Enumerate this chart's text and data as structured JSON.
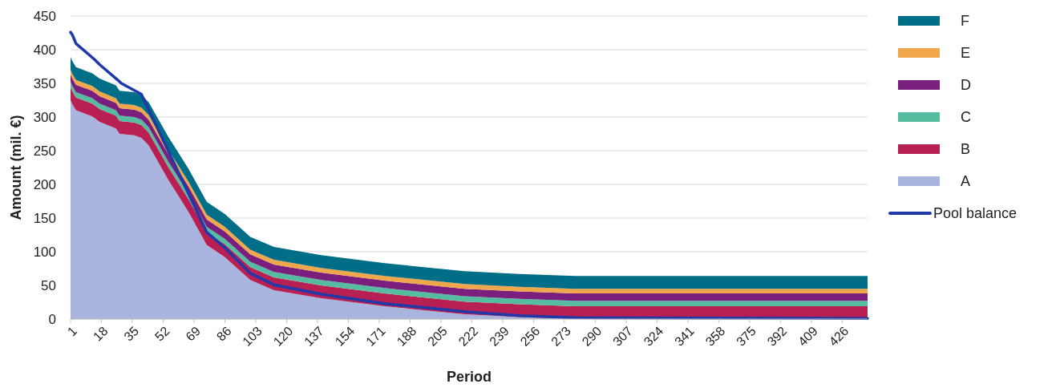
{
  "chart_data": {
    "type": "area",
    "stacked": true,
    "xlabel": "Period",
    "ylabel": "Amount (mil. €)",
    "x": [
      1,
      2,
      4,
      13,
      17,
      26,
      28,
      36,
      40,
      44,
      55,
      59,
      66,
      76,
      86,
      100,
      113,
      139,
      174,
      218,
      248,
      279,
      440
    ],
    "series": [
      {
        "name": "A",
        "color": "#a9b5de",
        "values": [
          325,
          319,
          310,
          301,
          293,
          283,
          275,
          273,
          269,
          258,
          206,
          189,
          159,
          110,
          92,
          58,
          43,
          31,
          19,
          7,
          3,
          0,
          0
        ]
      },
      {
        "name": "B",
        "color": "#b81f52",
        "values": [
          19,
          19,
          19,
          19,
          19,
          19,
          19,
          19,
          19,
          19,
          19,
          19,
          19,
          19,
          19,
          19,
          19,
          19,
          19,
          19,
          19,
          19,
          19
        ]
      },
      {
        "name": "C",
        "color": "#55bca0",
        "values": [
          8,
          8,
          8,
          8,
          8,
          8,
          8,
          8,
          8,
          8,
          8,
          8,
          8,
          8,
          8,
          8,
          8,
          8,
          8,
          8,
          8,
          8,
          8
        ]
      },
      {
        "name": "D",
        "color": "#7a1f7e",
        "values": [
          11,
          11,
          11,
          11,
          11,
          11,
          11,
          11,
          11,
          11,
          11,
          11,
          11,
          11,
          11,
          11,
          11,
          11,
          11,
          11,
          11,
          11,
          11
        ]
      },
      {
        "name": "E",
        "color": "#f0a64a",
        "values": [
          7,
          7,
          7,
          7,
          7,
          7,
          7,
          7,
          7,
          7,
          7,
          7,
          7,
          7,
          7,
          7,
          7,
          7,
          7,
          7,
          7,
          7,
          7
        ]
      },
      {
        "name": "F",
        "color": "#006e87",
        "values": [
          19,
          19,
          19,
          19,
          19,
          19,
          19,
          19,
          19,
          19,
          19,
          19,
          19,
          19,
          19,
          19,
          19,
          19,
          19,
          19,
          19,
          19,
          19
        ]
      },
      {
        "name": "Pool balance",
        "type": "line",
        "color": "#1f3aa8",
        "x": [
          1,
          2,
          4,
          14,
          17,
          27,
          29,
          40,
          59,
          76,
          86,
          100,
          113,
          139,
          174,
          218,
          248,
          279,
          440
        ],
        "values": [
          426,
          422,
          409,
          386,
          378,
          355,
          350,
          334,
          226,
          129,
          106,
          68,
          51,
          37,
          23,
          11,
          5,
          2,
          1
        ]
      }
    ],
    "xlim": [
      1,
      440
    ],
    "xticks": [
      1,
      18,
      35,
      52,
      69,
      86,
      103,
      120,
      137,
      154,
      171,
      188,
      205,
      222,
      239,
      256,
      273,
      290,
      307,
      324,
      341,
      358,
      375,
      392,
      409,
      426
    ],
    "ylim": [
      0,
      450
    ],
    "yticks": [
      0,
      50,
      100,
      150,
      200,
      250,
      300,
      350,
      400,
      450
    ],
    "grid": "y",
    "legend": "right",
    "line_style": "solid",
    "marker": "none"
  }
}
